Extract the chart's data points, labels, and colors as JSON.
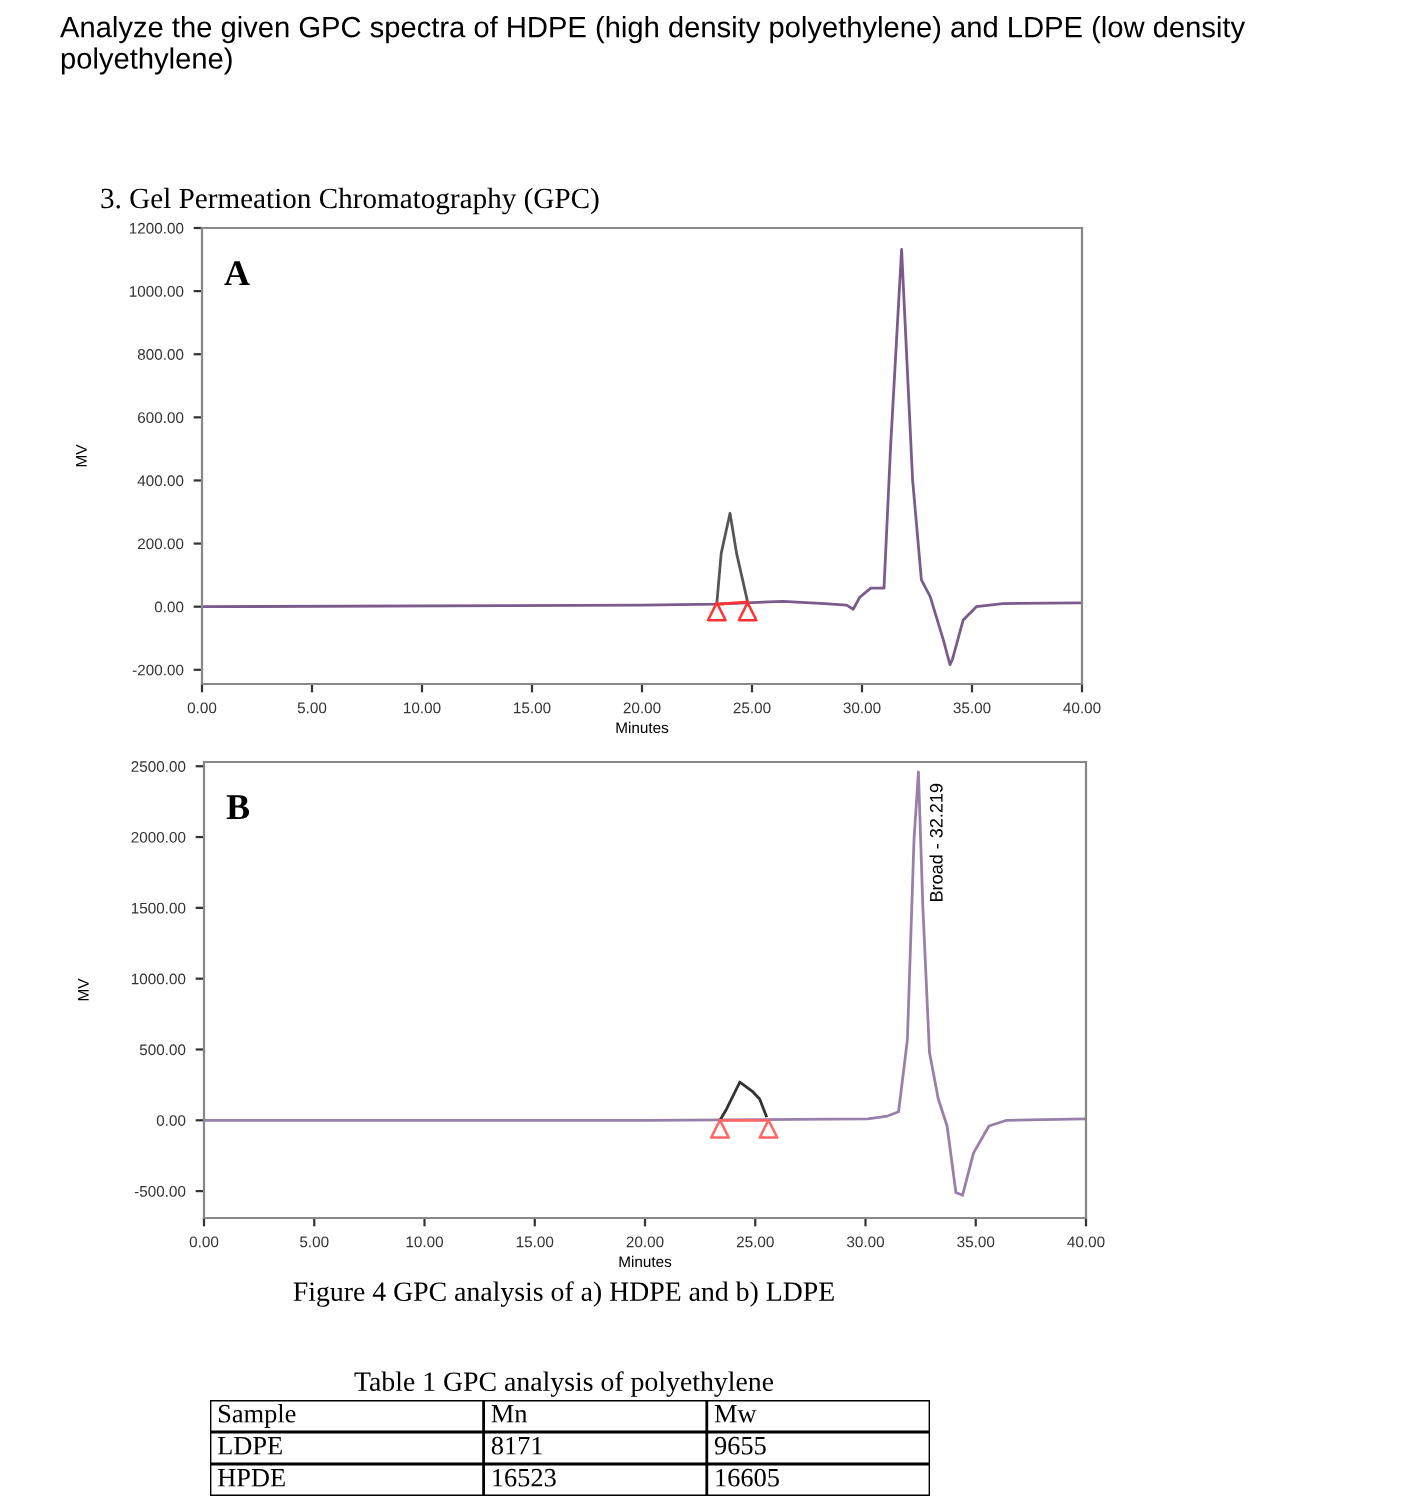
{
  "chart_data": [
    {
      "type": "line",
      "title": "3. Gel Permeation Chromatography (GPC)",
      "annotations": [
        "Analyze the given GPC spectra of HDPE (high density polyethylene) and LDPE (low density polyethylene)",
        "A"
      ],
      "xlabel": "Minutes",
      "ylabel": "MV",
      "xlim": [
        0,
        40
      ],
      "ylim": [
        -245,
        1200
      ],
      "xticks": [
        {
          "value": 0,
          "label": "0.00"
        },
        {
          "value": 5,
          "label": "5.00"
        },
        {
          "value": 10,
          "label": "10.00"
        },
        {
          "value": 15,
          "label": "15.00"
        },
        {
          "value": 20,
          "label": "20.00"
        },
        {
          "value": 25,
          "label": "25.00"
        },
        {
          "value": 30,
          "label": "30.00"
        },
        {
          "value": 35,
          "label": "35.00"
        },
        {
          "value": 40,
          "label": "40.00"
        }
      ],
      "yticks": [
        {
          "value": -200,
          "label": "-200.00"
        },
        {
          "value": 0,
          "label": "0.00"
        },
        {
          "value": 200,
          "label": "200.00"
        },
        {
          "value": 400,
          "label": "400.00"
        },
        {
          "value": 600,
          "label": "600.00"
        },
        {
          "value": 800,
          "label": "800.00"
        },
        {
          "value": 1000,
          "label": "1000.00"
        },
        {
          "value": 1200,
          "label": "1200.00"
        }
      ],
      "grid": false,
      "series": [
        {
          "type": "line",
          "color": "#7b5a8c",
          "x": [
            0,
            20,
            23.4,
            26.4,
            28.3,
            29.3,
            29.6,
            29.9,
            30.4,
            31.0,
            31.3,
            31.8,
            32.3,
            32.7,
            33.1,
            33.7,
            34.0,
            34.1,
            34.6,
            35.2,
            36.4,
            40
          ],
          "values": [
            0,
            5,
            8,
            17,
            10,
            5,
            -8,
            30,
            59,
            59,
            508,
            1132,
            402,
            85,
            32,
            -106,
            -184,
            -169,
            -42,
            0,
            10,
            12
          ]
        },
        {
          "type": "line",
          "color": "#555555",
          "x": [
            23.4,
            23.6,
            24.0,
            24.3,
            24.8
          ],
          "values": [
            10,
            169,
            296,
            169,
            15
          ]
        },
        {
          "type": "line",
          "color": "#ff3333",
          "x": [
            23.4,
            24.8
          ],
          "values": [
            8,
            15
          ]
        },
        {
          "type": "scatter",
          "color": "#ff3333",
          "marker": "triangle",
          "x": [
            23.4,
            24.8
          ],
          "values": [
            -15,
            -15
          ]
        }
      ]
    },
    {
      "type": "line",
      "annotations": [
        "B",
        "Figure 4 GPC analysis of a) HDPE and b) LDPE",
        "Broad - 32.219"
      ],
      "xlabel": "Minutes",
      "ylabel": "MV",
      "xlim": [
        0,
        40
      ],
      "ylim": [
        -690,
        2530
      ],
      "xticks": [
        {
          "value": 0,
          "label": "0.00"
        },
        {
          "value": 5,
          "label": "5.00"
        },
        {
          "value": 10,
          "label": "10.00"
        },
        {
          "value": 15,
          "label": "15.00"
        },
        {
          "value": 20,
          "label": "20.00"
        },
        {
          "value": 25,
          "label": "25.00"
        },
        {
          "value": 30,
          "label": "30.00"
        },
        {
          "value": 35,
          "label": "35.00"
        },
        {
          "value": 40,
          "label": "40.00"
        }
      ],
      "yticks": [
        {
          "value": -500,
          "label": "-500.00"
        },
        {
          "value": 0,
          "label": "0.00"
        },
        {
          "value": 500,
          "label": "500.00"
        },
        {
          "value": 1000,
          "label": "1000.00"
        },
        {
          "value": 1500,
          "label": "1500.00"
        },
        {
          "value": 2000,
          "label": "2000.00"
        },
        {
          "value": 2500,
          "label": "2500.00"
        }
      ],
      "grid": false,
      "series": [
        {
          "type": "line",
          "color": "#9a7fa8",
          "x": [
            0,
            20,
            30.1,
            31.0,
            31.5,
            31.9,
            32.2,
            32.4,
            32.6,
            32.9,
            33.3,
            33.7,
            34.1,
            34.4,
            34.9,
            35.6,
            36.4,
            40
          ],
          "values": [
            0,
            0,
            10,
            30,
            60,
            570,
            1980,
            2460,
            1510,
            480,
            150,
            -40,
            -510,
            -530,
            -230,
            -40,
            0,
            10
          ]
        },
        {
          "type": "line",
          "color": "#333333",
          "x": [
            23.4,
            23.7,
            24.3,
            24.9,
            25.2,
            25.5
          ],
          "values": [
            0,
            80,
            270,
            200,
            150,
            30
          ]
        },
        {
          "type": "line",
          "color": "#ff6666",
          "x": [
            23.4,
            25.5
          ],
          "values": [
            0,
            0
          ]
        },
        {
          "type": "scatter",
          "color": "#ff6666",
          "marker": "triangle",
          "x": [
            23.4,
            25.6
          ],
          "values": [
            -60,
            -60
          ]
        }
      ]
    },
    {
      "type": "other",
      "title": "Table 1 GPC analysis of polyethylene",
      "categories": [
        "Sample",
        "Mn",
        "Mw"
      ],
      "annotations": [
        "LDPE",
        "8171",
        "9655",
        "HPDE",
        "16523",
        "16605"
      ]
    }
  ]
}
